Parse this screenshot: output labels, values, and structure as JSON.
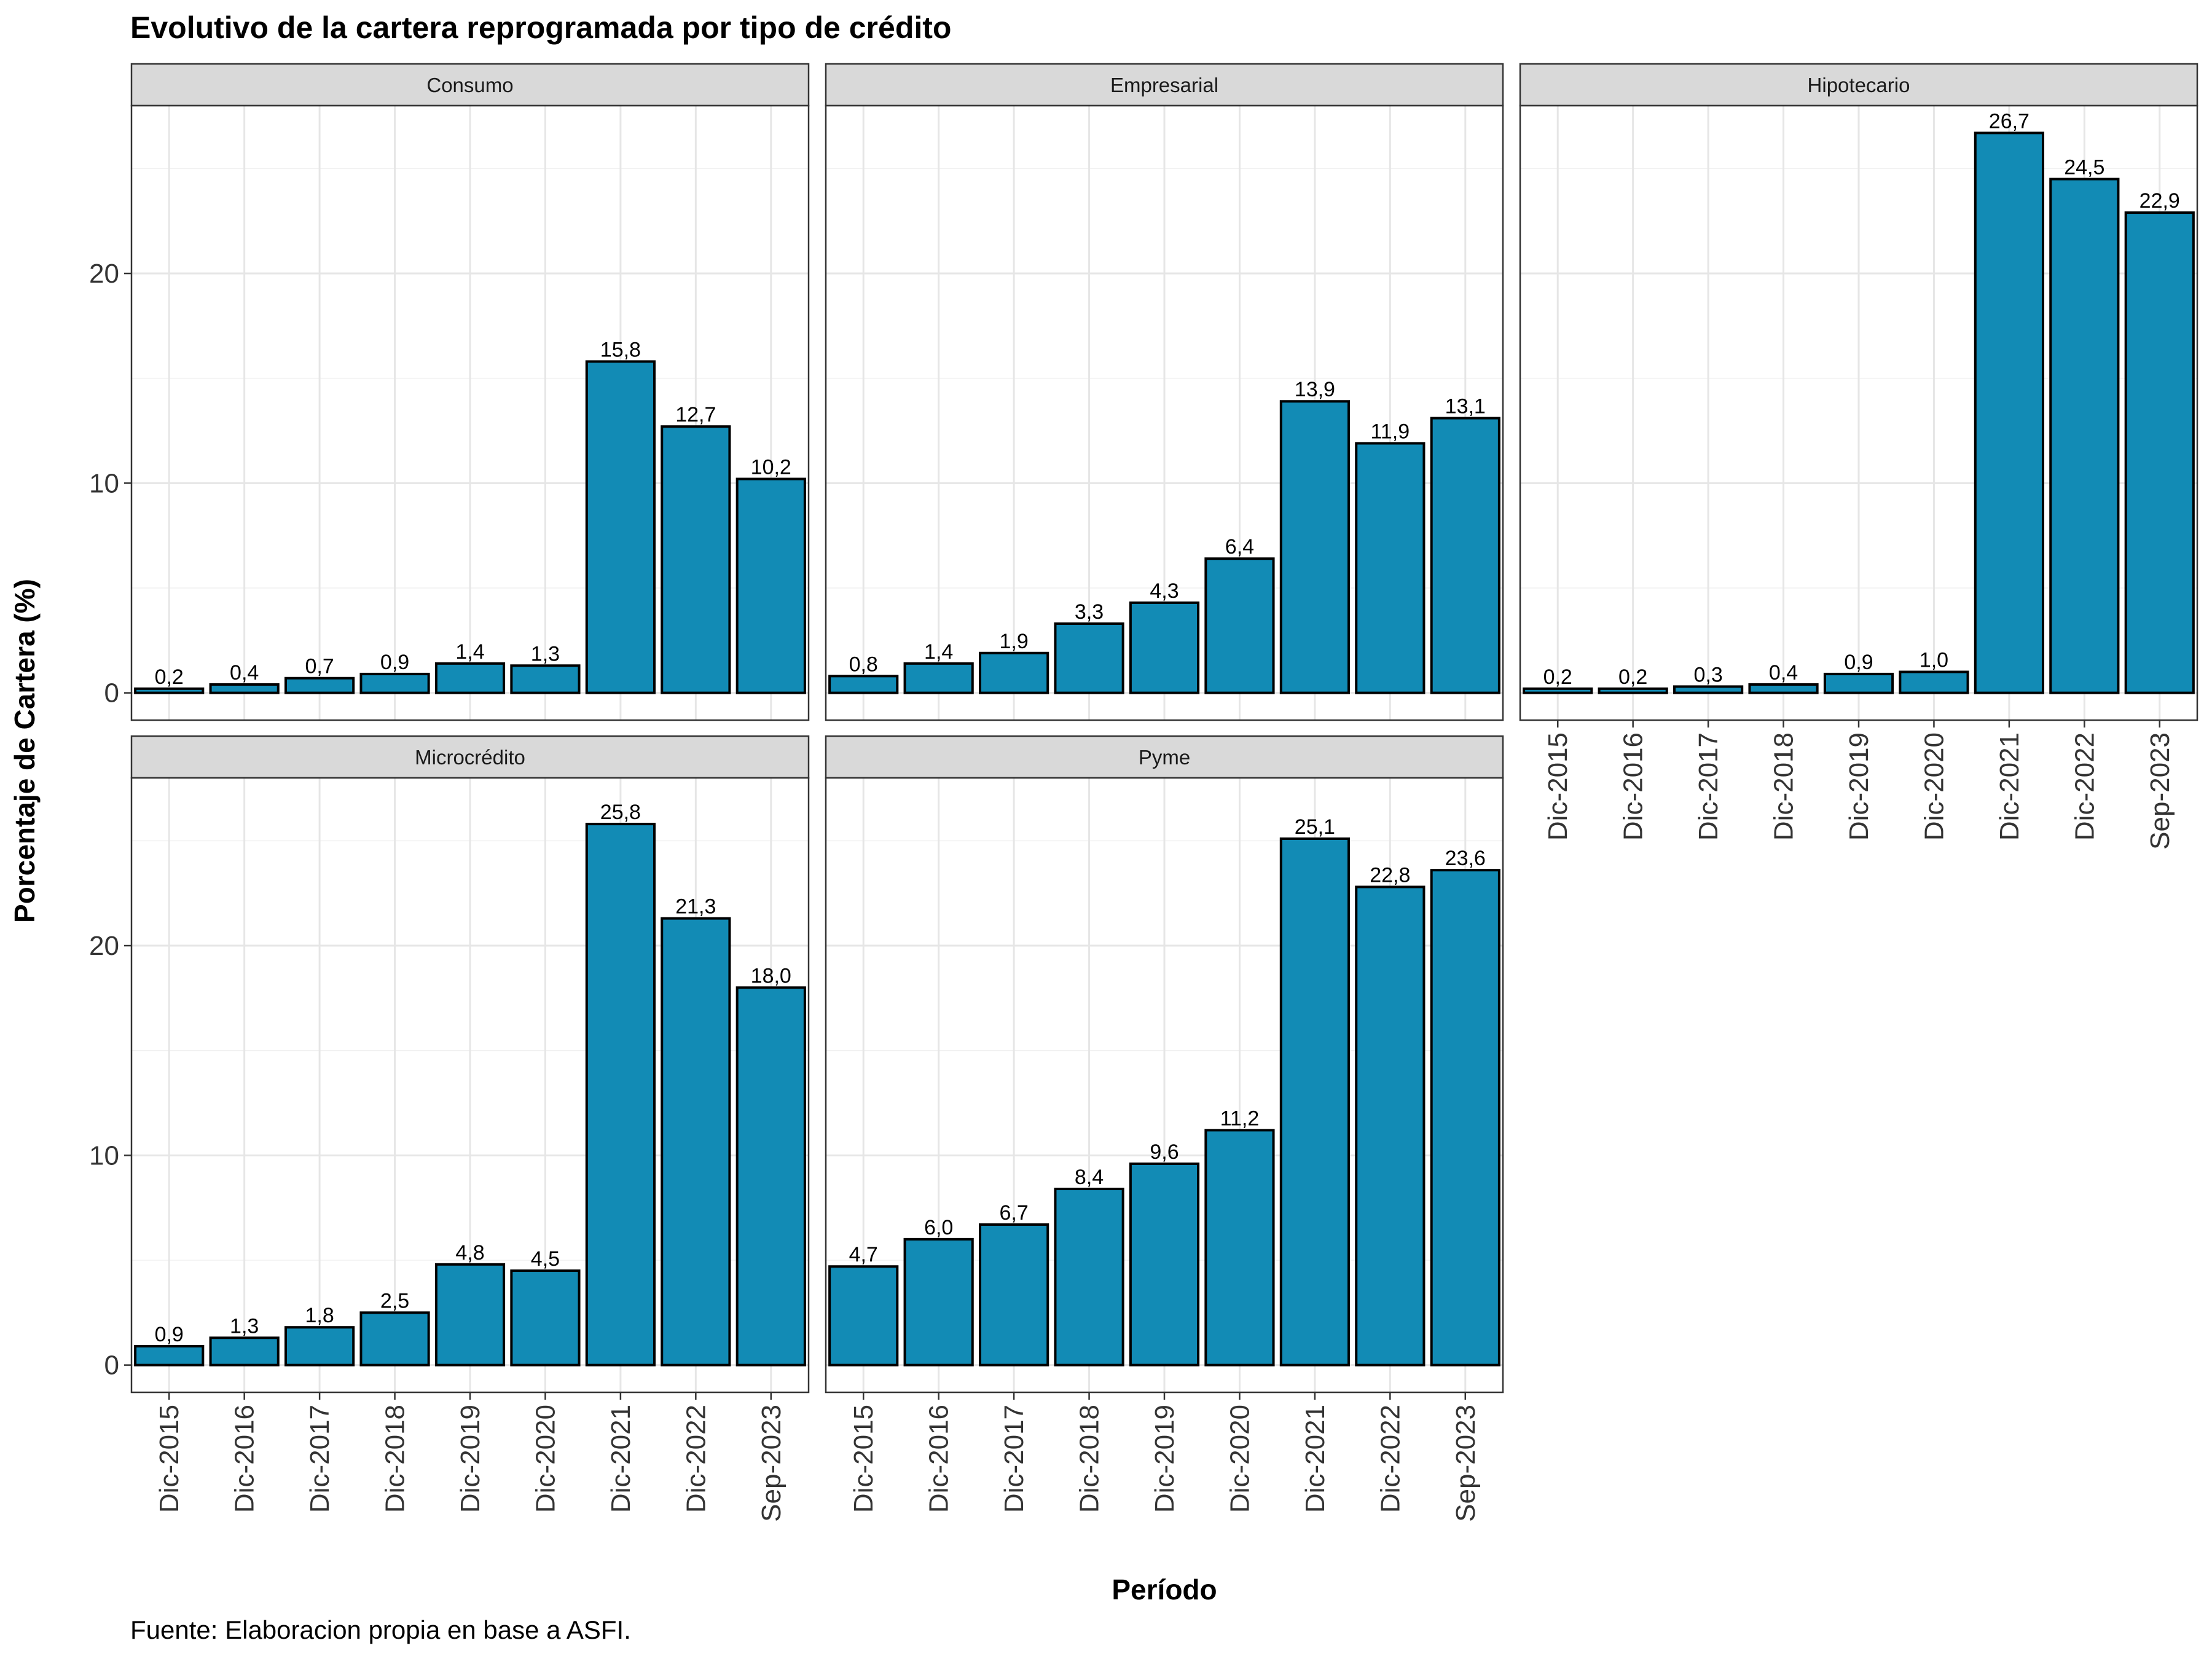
{
  "chart_data": {
    "type": "bar",
    "title": "Evolutivo de la cartera reprogramada por tipo de crédito",
    "xlabel": "Período",
    "ylabel": "Porcentaje de Cartera (%)",
    "caption": "Fuente: Elaboracion propia en base a ASFI.",
    "categories": [
      "Dic-2015",
      "Dic-2016",
      "Dic-2017",
      "Dic-2018",
      "Dic-2019",
      "Dic-2020",
      "Dic-2021",
      "Dic-2022",
      "Sep-2023"
    ],
    "ylim": [
      -1.3,
      28.0
    ],
    "yticks": [
      0,
      10,
      20
    ],
    "grid": true,
    "bar_color": "#128bb5",
    "panels": [
      {
        "name": "Consumo",
        "values": [
          0.2,
          0.4,
          0.7,
          0.9,
          1.4,
          1.3,
          15.8,
          12.7,
          10.2
        ],
        "labels": [
          "0,2",
          "0,4",
          "0,7",
          "0,9",
          "1,4",
          "1,3",
          "15,8",
          "12,7",
          "10,2"
        ]
      },
      {
        "name": "Empresarial",
        "values": [
          0.8,
          1.4,
          1.9,
          3.3,
          4.3,
          6.4,
          13.9,
          11.9,
          13.1
        ],
        "labels": [
          "0,8",
          "1,4",
          "1,9",
          "3,3",
          "4,3",
          "6,4",
          "13,9",
          "11,9",
          "13,1"
        ]
      },
      {
        "name": "Hipotecario",
        "values": [
          0.2,
          0.2,
          0.3,
          0.4,
          0.9,
          1.0,
          26.7,
          24.5,
          22.9
        ],
        "labels": [
          "0,2",
          "0,2",
          "0,3",
          "0,4",
          "0,9",
          "1,0",
          "26,7",
          "24,5",
          "22,9"
        ]
      },
      {
        "name": "Microcrédito",
        "values": [
          0.9,
          1.3,
          1.8,
          2.5,
          4.8,
          4.5,
          25.8,
          21.3,
          18.0
        ],
        "labels": [
          "0,9",
          "1,3",
          "1,8",
          "2,5",
          "4,8",
          "4,5",
          "25,8",
          "21,3",
          "18,0"
        ]
      },
      {
        "name": "Pyme",
        "values": [
          4.7,
          6.0,
          6.7,
          8.4,
          9.6,
          11.2,
          25.1,
          22.8,
          23.6
        ],
        "labels": [
          "4,7",
          "6,0",
          "6,7",
          "8,4",
          "9,6",
          "11,2",
          "25,1",
          "22,8",
          "23,6"
        ]
      }
    ]
  }
}
